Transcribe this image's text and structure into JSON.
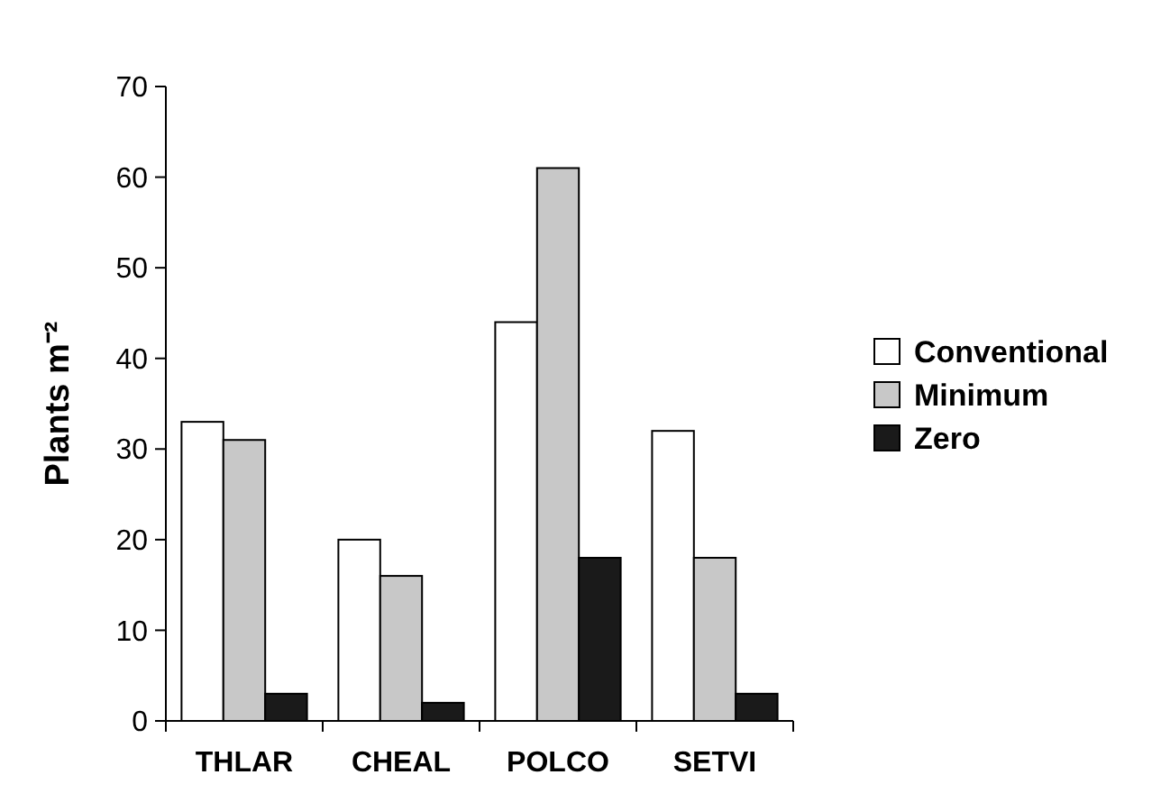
{
  "chart_data": {
    "type": "bar",
    "ylabel": "Plants m⁻²",
    "categories": [
      "THLAR",
      "CHEAL",
      "POLCO",
      "SETVI"
    ],
    "series": [
      {
        "name": "Conventional",
        "color": "#ffffff",
        "values": [
          33,
          20,
          44,
          32
        ]
      },
      {
        "name": "Minimum",
        "color": "#c8c8c8",
        "values": [
          31,
          16,
          61,
          18
        ]
      },
      {
        "name": "Zero",
        "color": "#1a1a1a",
        "values": [
          3,
          2,
          18,
          3
        ]
      }
    ],
    "ylim": [
      0,
      70
    ],
    "yticks": [
      0,
      10,
      20,
      30,
      40,
      50,
      60,
      70
    ],
    "grid": false,
    "legend": "right"
  }
}
